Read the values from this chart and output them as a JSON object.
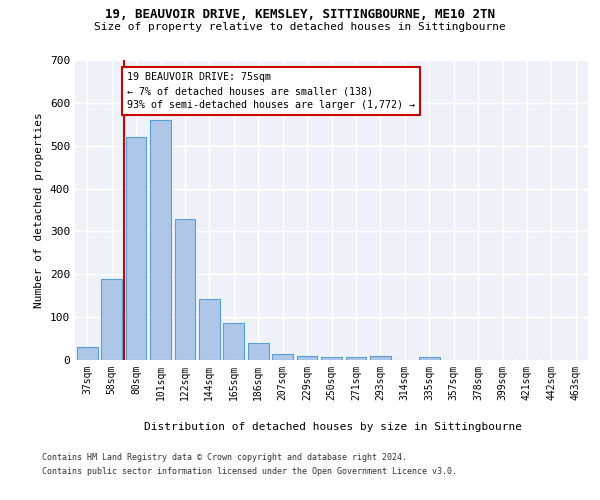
{
  "title_line1": "19, BEAUVOIR DRIVE, KEMSLEY, SITTINGBOURNE, ME10 2TN",
  "title_line2": "Size of property relative to detached houses in Sittingbourne",
  "xlabel": "Distribution of detached houses by size in Sittingbourne",
  "ylabel": "Number of detached properties",
  "categories": [
    "37sqm",
    "58sqm",
    "80sqm",
    "101sqm",
    "122sqm",
    "144sqm",
    "165sqm",
    "186sqm",
    "207sqm",
    "229sqm",
    "250sqm",
    "271sqm",
    "293sqm",
    "314sqm",
    "335sqm",
    "357sqm",
    "378sqm",
    "399sqm",
    "421sqm",
    "442sqm",
    "463sqm"
  ],
  "values": [
    30,
    190,
    520,
    560,
    328,
    142,
    87,
    40,
    13,
    10,
    8,
    8,
    10,
    0,
    6,
    0,
    0,
    0,
    0,
    0,
    0
  ],
  "bar_color": "#aec6e8",
  "bar_edge_color": "#5a9fd4",
  "annotation_title": "19 BEAUVOIR DRIVE: 75sqm",
  "annotation_line1": "← 7% of detached houses are smaller (138)",
  "annotation_line2": "93% of semi-detached houses are larger (1,772) →",
  "vline_color": "#cc0000",
  "annotation_box_color": "#cc0000",
  "ylim": [
    0,
    700
  ],
  "yticks": [
    0,
    100,
    200,
    300,
    400,
    500,
    600,
    700
  ],
  "footer_line1": "Contains HM Land Registry data © Crown copyright and database right 2024.",
  "footer_line2": "Contains public sector information licensed under the Open Government Licence v3.0.",
  "bg_color": "#eef2f8",
  "fig_bg_color": "#ffffff"
}
